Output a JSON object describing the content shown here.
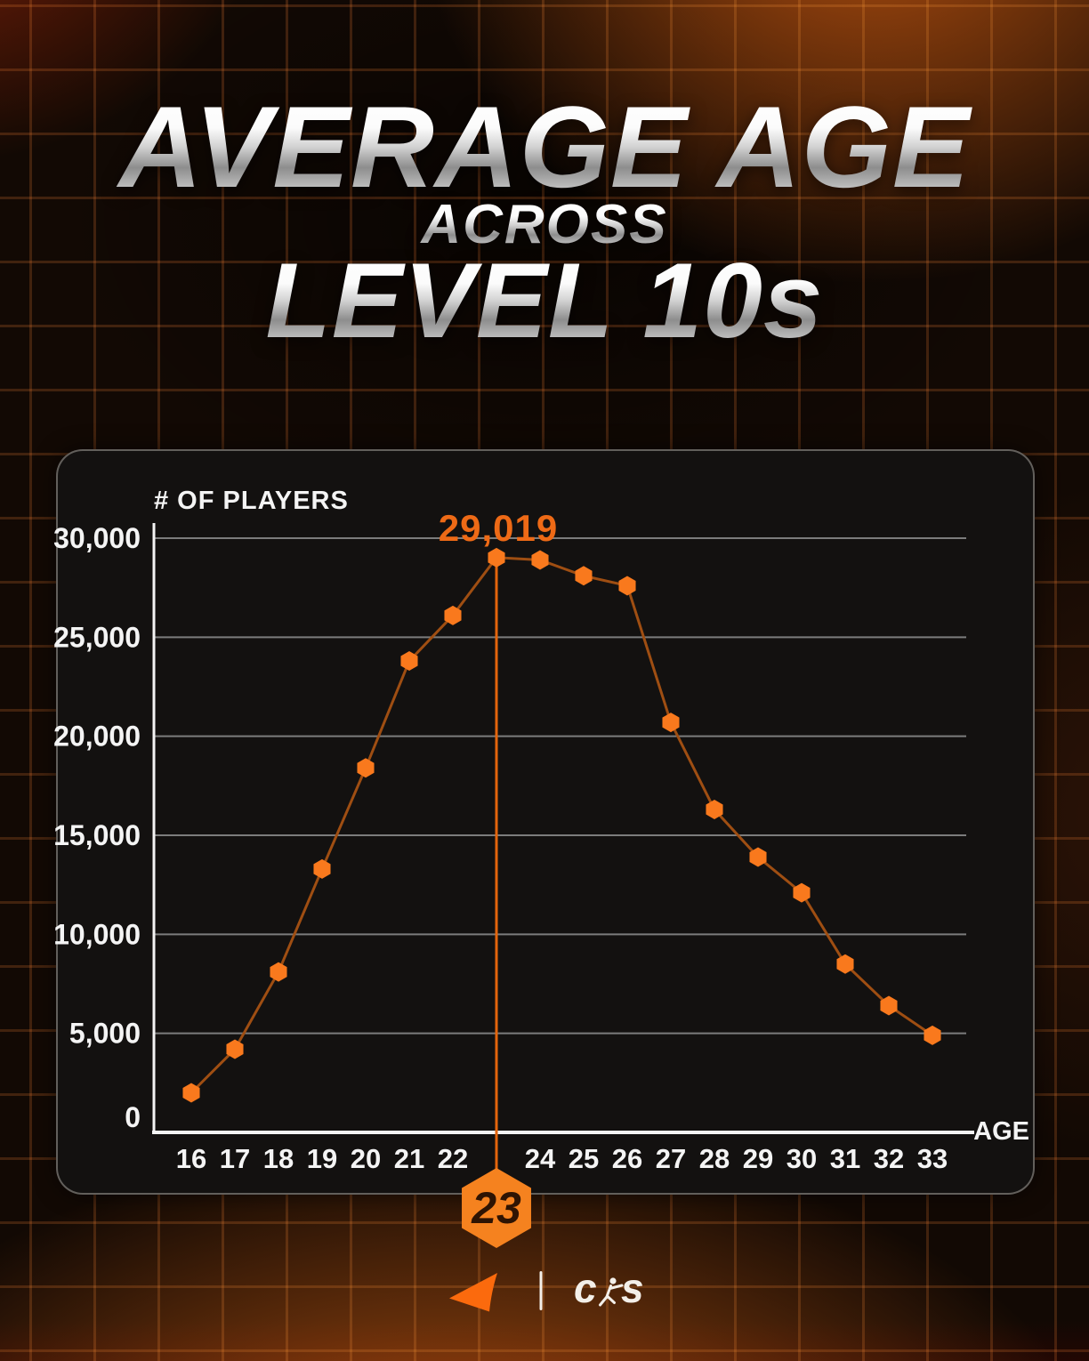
{
  "title": {
    "line1": "AVERAGE AGE",
    "line2": "ACROSS",
    "line3": "LEVEL 10s"
  },
  "chart": {
    "y_axis_title": "# OF PLAYERS",
    "x_axis_title": "AGE",
    "peak_label": "29,019",
    "badge_label": "23",
    "y_ticks": [
      {
        "label": "30,000",
        "value": 30000
      },
      {
        "label": "25,000",
        "value": 25000
      },
      {
        "label": "20,000",
        "value": 20000
      },
      {
        "label": "15,000",
        "value": 15000
      },
      {
        "label": "10,000",
        "value": 10000
      },
      {
        "label": "5,000",
        "value": 5000
      },
      {
        "label": "0",
        "value": 0
      }
    ]
  },
  "chart_data": {
    "type": "line",
    "title": "AVERAGE AGE ACROSS LEVEL 10s",
    "xlabel": "AGE",
    "ylabel": "# OF PLAYERS",
    "x": [
      16,
      17,
      18,
      19,
      20,
      21,
      22,
      23,
      24,
      25,
      26,
      27,
      28,
      29,
      30,
      31,
      32,
      33
    ],
    "values": [
      2000,
      4200,
      8100,
      13300,
      18400,
      23800,
      26100,
      29019,
      28900,
      28100,
      27600,
      20700,
      16300,
      13900,
      12100,
      8500,
      6400,
      4900
    ],
    "highlight": {
      "x": 23,
      "value": 29019,
      "label": "29,019",
      "badge": "23"
    },
    "ylim": [
      0,
      31500
    ],
    "grid": "horizontal-only",
    "legend": "none",
    "marker": "hexagon"
  },
  "footer": {
    "cs_logo_c": "c",
    "cs_logo_s": "s"
  },
  "colors": {
    "accent_orange": "#f5821f",
    "point_fill": "#f9791d",
    "line_stroke": "#9f4e12",
    "highlight_line": "#e4650c",
    "peak_label": "#ee6a16",
    "badge_fill": "#f5821f",
    "badge_text": "#2e1403",
    "grid_line": "#8f8f8f",
    "axis_white": "#f4f4f4",
    "panel_bg": "#131110",
    "faceit_orange": "#fb6a0d",
    "cs_white": "#f3efe9"
  }
}
